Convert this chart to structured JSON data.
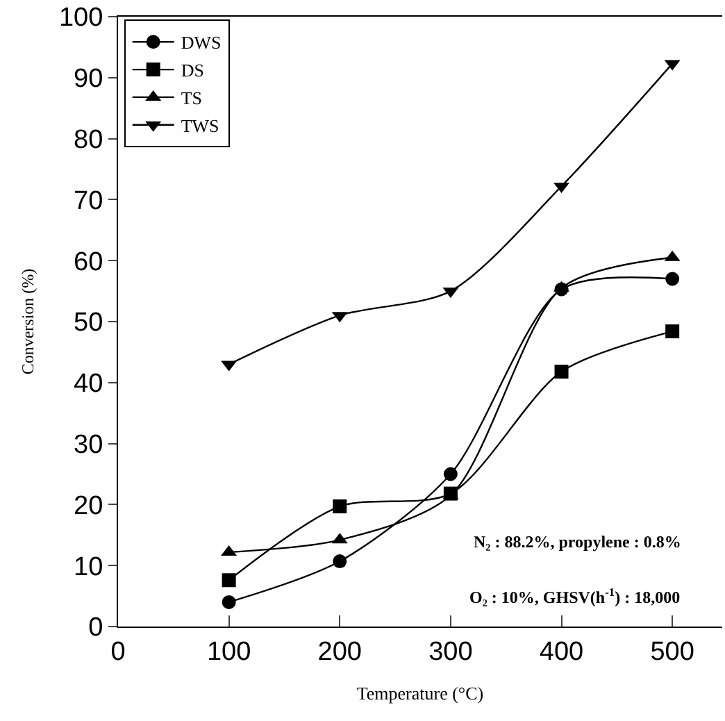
{
  "chart_data": {
    "type": "line",
    "xlabel": "Temperature (°C)",
    "ylabel": "Conversion (%)",
    "x": [
      100,
      200,
      300,
      400,
      500
    ],
    "series": [
      {
        "name": "DWS",
        "color": "#000000",
        "marker": "circle",
        "values": [
          4,
          10.7,
          25,
          55.3,
          57
        ]
      },
      {
        "name": "DS",
        "color": "#000000",
        "marker": "square",
        "values": [
          7.6,
          19.7,
          21.8,
          41.8,
          48.4
        ]
      },
      {
        "name": "TS",
        "color": "#000000",
        "marker": "triangle",
        "values": [
          12.2,
          14.2,
          21.5,
          55.5,
          60.5
        ]
      },
      {
        "name": "TWS",
        "color": "#000000",
        "marker": "triangle-down",
        "values": [
          43,
          51,
          55,
          72.2,
          92.3
        ]
      }
    ],
    "xlim": [
      0,
      545
    ],
    "xticks": [
      0,
      100,
      200,
      300,
      400,
      500
    ],
    "ylim": [
      0,
      100
    ],
    "yticks": [
      0,
      10,
      20,
      30,
      40,
      50,
      60,
      70,
      80,
      90,
      100
    ],
    "legend": "top left",
    "line_style": "solid",
    "annotations": [
      "N₂ : 88.2%, propylene : 0.8%",
      "O₂ : 10%, GHSV(h$^{-1}$) : 18,000"
    ]
  }
}
